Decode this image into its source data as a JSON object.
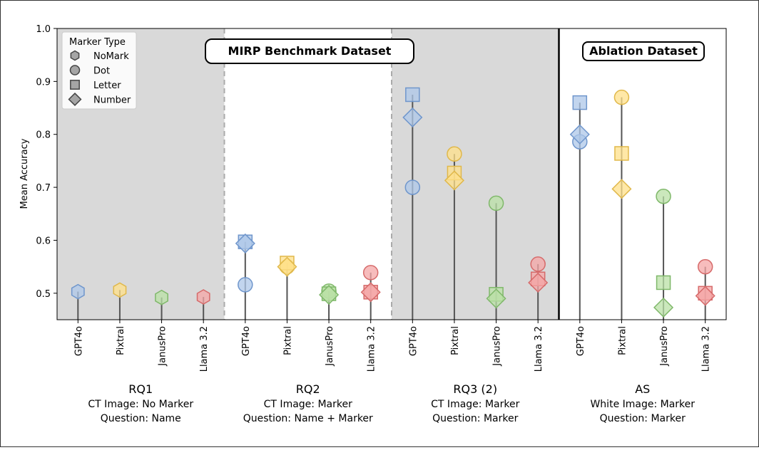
{
  "chart_data": {
    "type": "scatter",
    "ylabel": "Mean Accuracy",
    "ylim": [
      0.45,
      1.0
    ],
    "yticks": [
      "0.5",
      "0.6",
      "0.7",
      "0.8",
      "0.9",
      "1.0"
    ],
    "legend": {
      "title": "Marker Type",
      "placement": "top-left",
      "entries": [
        {
          "label": "NoMark",
          "shape": "hexagon"
        },
        {
          "label": "Dot",
          "shape": "circle"
        },
        {
          "label": "Letter",
          "shape": "square"
        },
        {
          "label": "Number",
          "shape": "diamond"
        }
      ]
    },
    "section_labels": {
      "mirp": "MIRP Benchmark Dataset",
      "ablation": "Ablation Dataset"
    },
    "model_colors": {
      "GPT4o": "#aec7e8",
      "Pixtral": "#ffe08a",
      "JanusPro": "#b9e0a5",
      "Llama 3.2": "#f4a6a6"
    },
    "model_edge_colors": {
      "GPT4o": "#6f96cc",
      "Pixtral": "#e0b84a",
      "JanusPro": "#7fb86a",
      "Llama 3.2": "#d66a6a"
    },
    "groups": [
      {
        "name": "RQ1",
        "line1": "CT Image: No Marker",
        "line2": "Question: Name",
        "shaded": true,
        "models": [
          {
            "model": "GPT4o",
            "values": {
              "NoMark": 0.503
            }
          },
          {
            "model": "Pixtral",
            "values": {
              "NoMark": 0.506
            }
          },
          {
            "model": "JanusPro",
            "values": {
              "NoMark": 0.492
            }
          },
          {
            "model": "Llama 3.2",
            "values": {
              "NoMark": 0.493
            }
          }
        ]
      },
      {
        "name": "RQ2",
        "line1": "CT Image: Marker",
        "line2": "Question: Name + Marker",
        "shaded": false,
        "models": [
          {
            "model": "GPT4o",
            "values": {
              "Dot": 0.516,
              "Letter": 0.597,
              "Number": 0.594
            }
          },
          {
            "model": "Pixtral",
            "values": {
              "Dot": 0.55,
              "Letter": 0.557,
              "Number": 0.55
            }
          },
          {
            "model": "JanusPro",
            "values": {
              "Dot": 0.504,
              "Letter": 0.499,
              "Number": 0.497
            }
          },
          {
            "model": "Llama 3.2",
            "values": {
              "Dot": 0.539,
              "Letter": 0.502,
              "Number": 0.502
            }
          }
        ]
      },
      {
        "name": "RQ3 (2)",
        "line1": "CT Image: Marker",
        "line2": "Question: Marker",
        "shaded": true,
        "models": [
          {
            "model": "GPT4o",
            "values": {
              "Dot": 0.7,
              "Letter": 0.875,
              "Number": 0.832
            }
          },
          {
            "model": "Pixtral",
            "values": {
              "Dot": 0.763,
              "Letter": 0.727,
              "Number": 0.713
            }
          },
          {
            "model": "JanusPro",
            "values": {
              "Dot": 0.67,
              "Letter": 0.498,
              "Number": 0.49
            }
          },
          {
            "model": "Llama 3.2",
            "values": {
              "Dot": 0.555,
              "Letter": 0.527,
              "Number": 0.52
            }
          }
        ]
      },
      {
        "name": "AS",
        "line1": "White Image: Marker",
        "line2": "Question: Marker",
        "shaded": false,
        "models": [
          {
            "model": "GPT4o",
            "values": {
              "Dot": 0.786,
              "Letter": 0.86,
              "Number": 0.8
            }
          },
          {
            "model": "Pixtral",
            "values": {
              "Dot": 0.87,
              "Letter": 0.764,
              "Number": 0.697
            }
          },
          {
            "model": "JanusPro",
            "values": {
              "Dot": 0.683,
              "Letter": 0.52,
              "Number": 0.473
            }
          },
          {
            "model": "Llama 3.2",
            "values": {
              "Dot": 0.55,
              "Letter": 0.5,
              "Number": 0.495
            }
          }
        ]
      }
    ],
    "grid": false
  }
}
